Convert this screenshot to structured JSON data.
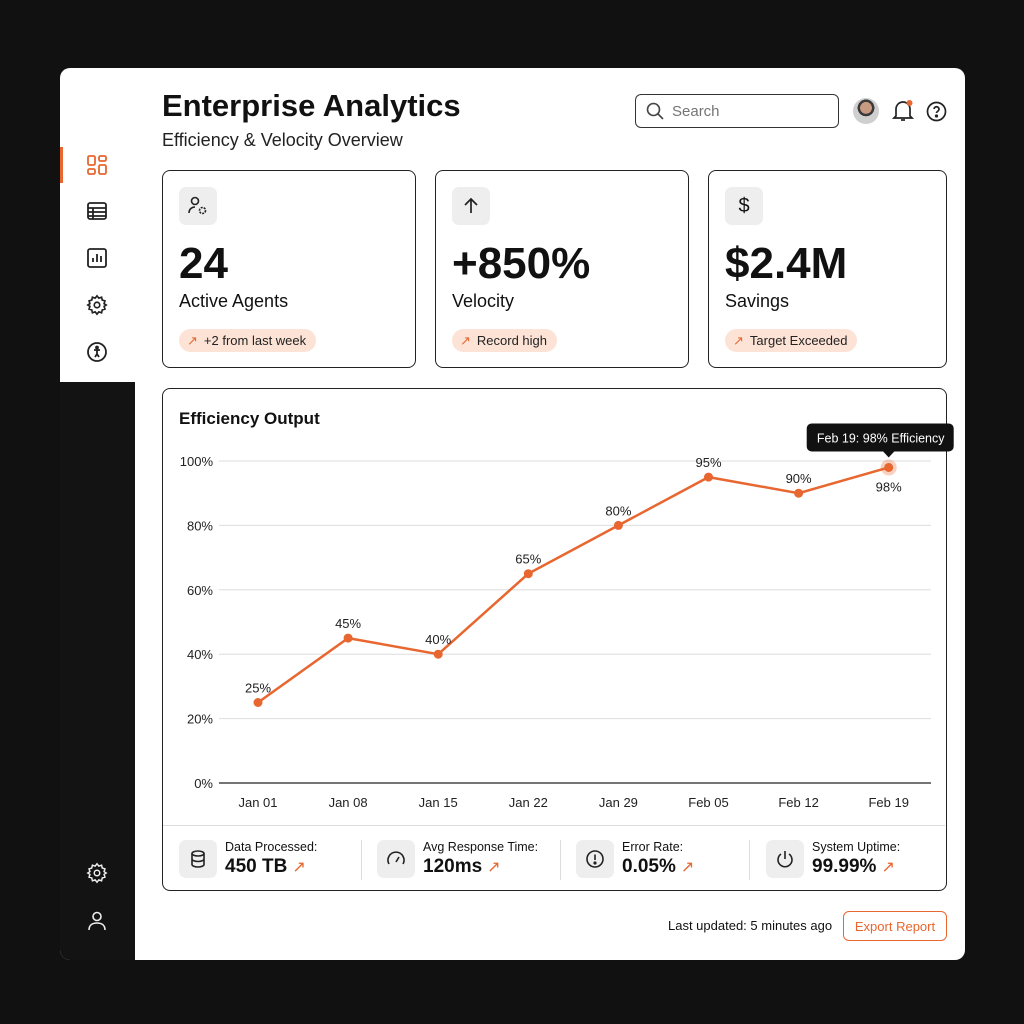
{
  "header": {
    "title": "Enterprise Analytics",
    "subtitle": "Efficiency & Velocity Overview",
    "search_placeholder": "Search"
  },
  "sidebar": {
    "items": [
      "dashboard-icon",
      "table-icon",
      "bar-chart-icon",
      "gear-icon",
      "accessibility-icon"
    ],
    "bottom": [
      "gear-icon",
      "user-icon"
    ],
    "active": 0
  },
  "stats": [
    {
      "icon": "user-gear-icon",
      "value": "24",
      "label": "Active Agents",
      "badge": "+2 from last week"
    },
    {
      "icon": "arrow-up-icon",
      "value": "+850%",
      "label": "Velocity",
      "badge": "Record high"
    },
    {
      "icon": "dollar-icon",
      "value": "$2.4M",
      "label": "Savings",
      "badge": "Target Exceeded"
    }
  ],
  "colors": {
    "accent": "#e8662f",
    "badge_bg": "#fde3d6"
  },
  "chart_data": {
    "type": "line",
    "title": "Efficiency Output",
    "categories": [
      "Jan 01",
      "Jan 08",
      "Jan 15",
      "Jan 22",
      "Jan 29",
      "Feb 05",
      "Feb 12",
      "Feb 19"
    ],
    "values": [
      25,
      45,
      40,
      65,
      80,
      95,
      90,
      98
    ],
    "data_labels": [
      "25%",
      "45%",
      "40%",
      "65%",
      "80%",
      "95%",
      "90%",
      "98%"
    ],
    "yticks": [
      "0%",
      "20%",
      "40%",
      "60%",
      "80%",
      "100%"
    ],
    "ylim": [
      0,
      100
    ],
    "grid": true,
    "tooltip": "Feb 19: 98% Efficiency"
  },
  "metrics": [
    {
      "icon": "database-icon",
      "label": "Data Processed:",
      "value": "450 TB"
    },
    {
      "icon": "speedometer-icon",
      "label": "Avg Response Time:",
      "value": "120ms"
    },
    {
      "icon": "alert-circle-icon",
      "label": "Error Rate:",
      "value": "0.05%"
    },
    {
      "icon": "power-icon",
      "label": "System Uptime:",
      "value": "99.99%"
    }
  ],
  "footer": {
    "updated": "Last updated: 5 minutes ago",
    "export": "Export Report"
  }
}
